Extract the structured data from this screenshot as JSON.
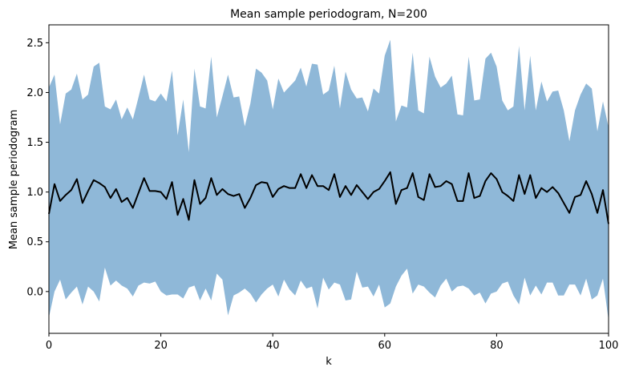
{
  "chart_data": {
    "type": "area",
    "title": "Mean sample periodogram, N=200",
    "xlabel": "k",
    "ylabel": "Mean sample periodogram",
    "xlim": [
      0,
      100
    ],
    "ylim": [
      -0.42,
      2.68
    ],
    "xticks": [
      "0",
      "20",
      "40",
      "60",
      "80",
      "100"
    ],
    "yticks": [
      "0.0",
      "0.5",
      "1.0",
      "1.5",
      "2.0",
      "2.5"
    ],
    "grid": false,
    "legend": false,
    "colors": {
      "band": "#8fb8d8",
      "line": "#000000"
    },
    "x": [
      0,
      1,
      2,
      3,
      4,
      5,
      6,
      7,
      8,
      9,
      10,
      11,
      12,
      13,
      14,
      15,
      16,
      17,
      18,
      19,
      20,
      21,
      22,
      23,
      24,
      25,
      26,
      27,
      28,
      29,
      30,
      31,
      32,
      33,
      34,
      35,
      36,
      37,
      38,
      39,
      40,
      41,
      42,
      43,
      44,
      45,
      46,
      47,
      48,
      49,
      50,
      51,
      52,
      53,
      54,
      55,
      56,
      57,
      58,
      59,
      60,
      61,
      62,
      63,
      64,
      65,
      66,
      67,
      68,
      69,
      70,
      71,
      72,
      73,
      74,
      75,
      76,
      77,
      78,
      79,
      80,
      81,
      82,
      83,
      84,
      85,
      86,
      87,
      88,
      89,
      90,
      91,
      92,
      93,
      94,
      95,
      96,
      97,
      98,
      99,
      100
    ],
    "mean": [
      0.78,
      1.08,
      0.91,
      0.97,
      1.02,
      1.13,
      0.89,
      1.01,
      1.12,
      1.09,
      1.05,
      0.94,
      1.03,
      0.9,
      0.94,
      0.84,
      0.99,
      1.14,
      1.01,
      1.01,
      1.0,
      0.93,
      1.1,
      0.77,
      0.93,
      0.72,
      1.12,
      0.88,
      0.94,
      1.14,
      0.97,
      1.03,
      0.98,
      0.96,
      0.98,
      0.84,
      0.94,
      1.07,
      1.1,
      1.09,
      0.95,
      1.03,
      1.06,
      1.04,
      1.04,
      1.18,
      1.04,
      1.17,
      1.06,
      1.06,
      1.02,
      1.18,
      0.95,
      1.06,
      0.97,
      1.07,
      1.0,
      0.93,
      1.0,
      1.03,
      1.11,
      1.2,
      0.88,
      1.02,
      1.04,
      1.19,
      0.95,
      0.92,
      1.18,
      1.05,
      1.06,
      1.11,
      1.08,
      0.91,
      0.91,
      1.19,
      0.94,
      0.96,
      1.11,
      1.19,
      1.13,
      1.0,
      0.96,
      0.91,
      1.17,
      0.98,
      1.17,
      0.94,
      1.04,
      1.0,
      1.05,
      0.99,
      0.89,
      0.79,
      0.95,
      0.97,
      1.11,
      0.98,
      0.79,
      1.02,
      0.68
    ],
    "upper": [
      2.05,
      2.18,
      1.68,
      1.99,
      2.03,
      2.19,
      1.93,
      1.98,
      2.26,
      2.3,
      1.86,
      1.83,
      1.93,
      1.73,
      1.85,
      1.73,
      1.95,
      2.18,
      1.93,
      1.91,
      1.99,
      1.91,
      2.22,
      1.57,
      1.93,
      1.4,
      2.24,
      1.86,
      1.84,
      2.36,
      1.75,
      1.96,
      2.18,
      1.95,
      1.96,
      1.66,
      1.89,
      2.24,
      2.2,
      2.12,
      1.83,
      2.14,
      2.0,
      2.06,
      2.12,
      2.25,
      2.06,
      2.29,
      2.28,
      1.98,
      2.02,
      2.27,
      1.84,
      2.21,
      2.03,
      1.94,
      1.95,
      1.81,
      2.04,
      1.99,
      2.37,
      2.53,
      1.71,
      1.87,
      1.85,
      2.4,
      1.82,
      1.79,
      2.36,
      2.16,
      2.05,
      2.09,
      2.17,
      1.78,
      1.77,
      2.36,
      1.92,
      1.93,
      2.34,
      2.4,
      2.26,
      1.92,
      1.82,
      1.86,
      2.47,
      1.82,
      2.37,
      1.82,
      2.11,
      1.91,
      2.01,
      2.02,
      1.82,
      1.51,
      1.82,
      1.98,
      2.09,
      2.04,
      1.61,
      1.91,
      1.65
    ],
    "lower": [
      -0.26,
      0.0,
      0.12,
      -0.08,
      -0.01,
      0.05,
      -0.13,
      0.05,
      0.0,
      -0.1,
      0.24,
      0.06,
      0.11,
      0.06,
      0.03,
      -0.05,
      0.06,
      0.09,
      0.08,
      0.1,
      0.0,
      -0.04,
      -0.03,
      -0.03,
      -0.07,
      0.04,
      0.06,
      -0.09,
      0.03,
      -0.09,
      0.18,
      0.12,
      -0.24,
      -0.04,
      -0.01,
      0.03,
      -0.02,
      -0.11,
      -0.03,
      0.03,
      0.07,
      -0.05,
      0.12,
      0.02,
      -0.04,
      0.11,
      0.03,
      0.05,
      -0.17,
      0.14,
      0.02,
      0.09,
      0.07,
      -0.09,
      -0.08,
      0.2,
      0.04,
      0.05,
      -0.05,
      0.07,
      -0.16,
      -0.12,
      0.05,
      0.16,
      0.23,
      -0.02,
      0.07,
      0.05,
      -0.01,
      -0.06,
      0.06,
      0.13,
      0.0,
      0.05,
      0.06,
      0.03,
      -0.04,
      -0.01,
      -0.12,
      -0.02,
      0.0,
      0.08,
      0.1,
      -0.04,
      -0.13,
      0.14,
      -0.04,
      0.06,
      -0.03,
      0.09,
      0.09,
      -0.04,
      -0.04,
      0.07,
      0.07,
      -0.04,
      0.13,
      -0.08,
      -0.04,
      0.13,
      -0.29
    ]
  }
}
